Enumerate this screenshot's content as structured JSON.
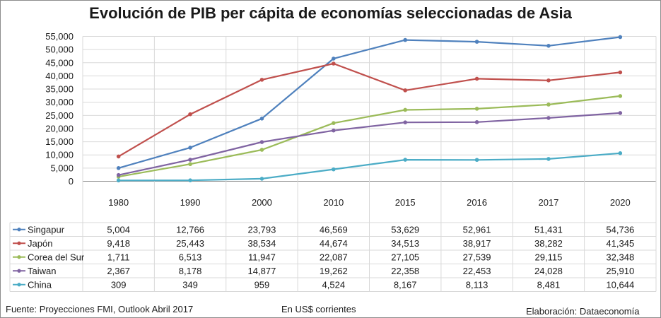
{
  "chart_data": {
    "type": "line",
    "title": "Evolución de PIB per cápita de economías seleccionadas de Asia",
    "categories": [
      "1980",
      "1990",
      "2000",
      "2010",
      "2015",
      "2016",
      "2017",
      "2020"
    ],
    "ylim": [
      0,
      55000
    ],
    "yticks": [
      "0",
      "5,000",
      "10,000",
      "15,000",
      "20,000",
      "25,000",
      "30,000",
      "35,000",
      "40,000",
      "45,000",
      "50,000",
      "55,000"
    ],
    "grid": true,
    "legend": "data-table",
    "series": [
      {
        "name": "Singapur",
        "color": "#4f81bd",
        "values": [
          5004,
          12766,
          23793,
          46569,
          53629,
          52961,
          51431,
          54736
        ],
        "labels": [
          "5,004",
          "12,766",
          "23,793",
          "46,569",
          "53,629",
          "52,961",
          "51,431",
          "54,736"
        ]
      },
      {
        "name": "Japón",
        "color": "#c0504d",
        "values": [
          9418,
          25443,
          38534,
          44674,
          34513,
          38917,
          38282,
          41345
        ],
        "labels": [
          "9,418",
          "25,443",
          "38,534",
          "44,674",
          "34,513",
          "38,917",
          "38,282",
          "41,345"
        ]
      },
      {
        "name": "Corea del Sur",
        "color": "#9bbb59",
        "values": [
          1711,
          6513,
          11947,
          22087,
          27105,
          27539,
          29115,
          32348
        ],
        "labels": [
          "1,711",
          "6,513",
          "11,947",
          "22,087",
          "27,105",
          "27,539",
          "29,115",
          "32,348"
        ]
      },
      {
        "name": "Taiwan",
        "color": "#8064a2",
        "values": [
          2367,
          8178,
          14877,
          19262,
          22358,
          22453,
          24028,
          25910
        ],
        "labels": [
          "2,367",
          "8,178",
          "14,877",
          "19,262",
          "22,358",
          "22,453",
          "24,028",
          "25,910"
        ]
      },
      {
        "name": "China",
        "color": "#4bacc6",
        "values": [
          309,
          349,
          959,
          4524,
          8167,
          8113,
          8481,
          10644
        ],
        "labels": [
          "309",
          "349",
          "959",
          "4,524",
          "8,167",
          "8,113",
          "8,481",
          "10,644"
        ]
      }
    ]
  },
  "footer": {
    "source": "Fuente: Proyecciones FMI, Outlook Abril 2017",
    "units": "En US$ corrientes",
    "credit": "Elaboración: Dataeconomía"
  }
}
